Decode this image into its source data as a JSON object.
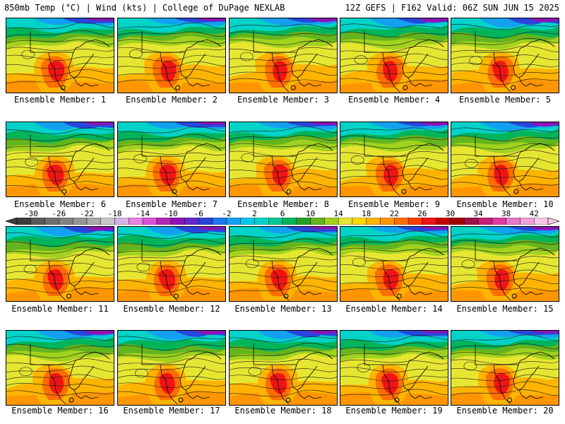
{
  "header": {
    "title_left": "850mb Temp (°C) | Wind (kts) | College of DuPage NEXLAB",
    "title_right": "12Z GEFS | F162 Valid: 06Z SUN JUN 15 2025"
  },
  "member_label_prefix": "Ensemble Member: ",
  "members": [
    1,
    2,
    3,
    4,
    5,
    6,
    7,
    8,
    9,
    10,
    11,
    12,
    13,
    14,
    15,
    16,
    17,
    18,
    19,
    20
  ],
  "colorbar": {
    "tick_labels": [
      "-30",
      "-26",
      "-22",
      "-18",
      "-14",
      "-10",
      "-6",
      "-2",
      "2",
      "6",
      "10",
      "14",
      "18",
      "22",
      "26",
      "30",
      "34",
      "38",
      "42"
    ],
    "min": -32,
    "max": 44,
    "step": 2,
    "colors": {
      "-32": "#3c3c3c",
      "-30": "#5a5a5a",
      "-28": "#6e6e6e",
      "-26": "#828282",
      "-24": "#969696",
      "-22": "#aaaaaa",
      "-20": "#c8c8c8",
      "-18": "#d2b4e6",
      "-16": "#e682e6",
      "-14": "#dc50dc",
      "-12": "#b428b4",
      "-10": "#8c14b4",
      "-8": "#6428c8",
      "-6": "#2846dc",
      "-4": "#1e78f0",
      "-2": "#14a0f0",
      "0": "#00c8f0",
      "2": "#00d2c8",
      "4": "#00c896",
      "6": "#00b45a",
      "8": "#28a028",
      "10": "#64b41e",
      "12": "#a0d21e",
      "14": "#e6e632",
      "16": "#ffd700",
      "18": "#ffb400",
      "20": "#ff9600",
      "22": "#ff6e00",
      "24": "#ff3c00",
      "26": "#f01414",
      "28": "#c80000",
      "30": "#a00000",
      "32": "#a01446",
      "34": "#c81e78",
      "36": "#dc3ca0",
      "38": "#e678c8",
      "40": "#f0a0dc",
      "42": "#f5c8e6"
    }
  }
}
